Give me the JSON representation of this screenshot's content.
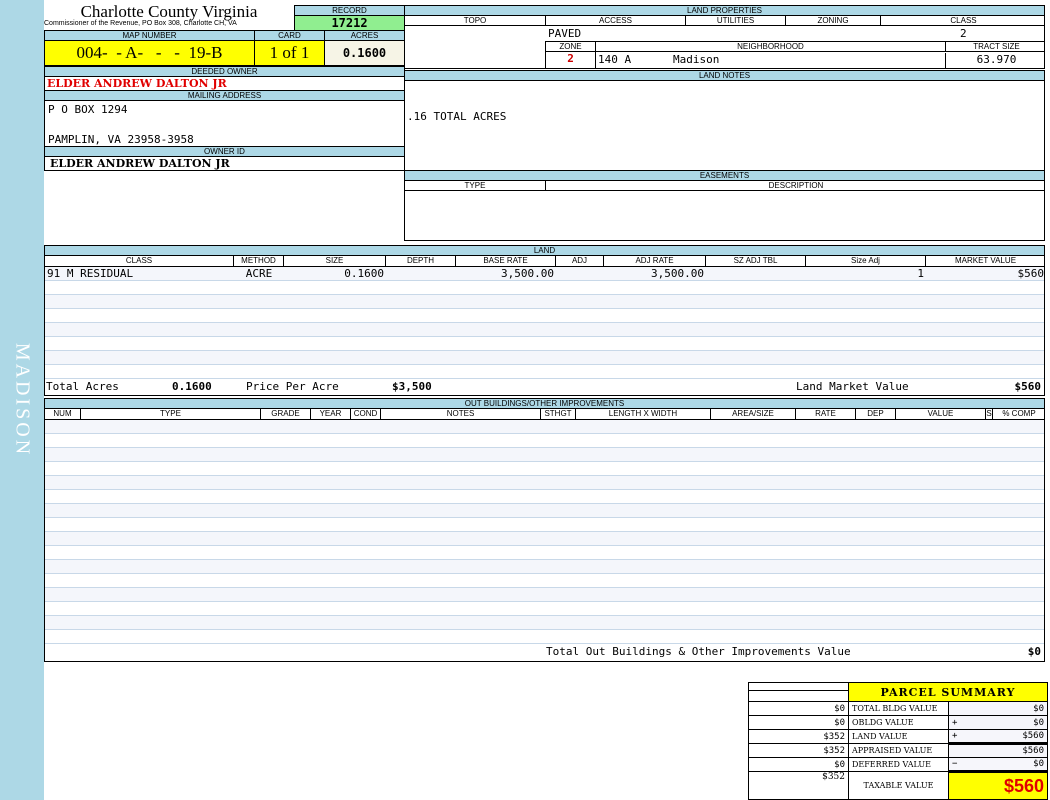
{
  "sidebar_label": "MADISON",
  "header": {
    "title": "Charlotte County Virginia",
    "subtitle": "Commissioner of the Revenue, PO Box 308, Charlotte CH, VA"
  },
  "record": {
    "label": "RECORD",
    "value": "17212"
  },
  "map": {
    "label": "MAP NUMBER",
    "value": "004-  - A-   -   -  19-B",
    "card_label": "CARD",
    "card": "1 of 1",
    "acres_label": "ACRES",
    "acres": "0.1600"
  },
  "owner": {
    "deeded_label": "DEEDED OWNER",
    "deeded": "ELDER ANDREW DALTON JR",
    "mailing_label": "MAILING ADDRESS",
    "address1": "P O BOX 1294",
    "address2": "PAMPLIN, VA 23958-3958",
    "owner_id_label": "OWNER ID",
    "owner_id": "ELDER ANDREW DALTON JR"
  },
  "land_properties": {
    "label": "LAND PROPERTIES",
    "cols": [
      "TOPO",
      "ACCESS",
      "UTILITIES",
      "ZONING",
      "CLASS"
    ],
    "access": "PAVED",
    "class": "2",
    "zone_label": "ZONE",
    "neighborhood_label": "NEIGHBORHOOD",
    "tract_label": "TRACT SIZE",
    "zone": "2",
    "neighborhood_code": "140 A",
    "neighborhood": "Madison",
    "tract": "63.970"
  },
  "land_notes": {
    "label": "LAND NOTES",
    "text": ".16 TOTAL ACRES"
  },
  "easements": {
    "label": "EASEMENTS",
    "cols": [
      "TYPE",
      "DESCRIPTION"
    ]
  },
  "land": {
    "label": "LAND",
    "cols": [
      "CLASS",
      "METHOD",
      "SIZE",
      "DEPTH",
      "BASE RATE",
      "ADJ",
      "ADJ RATE",
      "SZ ADJ TBL",
      "Size Adj",
      "MARKET VALUE"
    ],
    "rows": [
      {
        "class": "91 M RESIDUAL",
        "method": "ACRE",
        "size": "0.1600",
        "depth": "",
        "base": "3,500.00",
        "adj": "",
        "adj_rate": "3,500.00",
        "sz_tbl": "",
        "size_adj": "1",
        "market": "$560"
      }
    ],
    "total_acres_label": "Total Acres",
    "total_acres": "0.1600",
    "ppa_label": "Price Per Acre",
    "ppa": "$3,500",
    "lmv_label": "Land Market Value",
    "lmv": "$560"
  },
  "outbuildings": {
    "label": "OUT BUILDINGS/OTHER IMPROVEMENTS",
    "cols": [
      "NUM",
      "TYPE",
      "GRADE",
      "YEAR",
      "COND",
      "NOTES",
      "STHGT",
      "LENGTH X WIDTH",
      "AREA/SIZE",
      "RATE",
      "DEP",
      "VALUE",
      "S",
      "% COMP"
    ],
    "total_label": "Total Out Buildings & Other Improvements Value",
    "total": "$0"
  },
  "summary": {
    "title": "PARCEL SUMMARY",
    "rows": [
      {
        "left": "$0",
        "label": "TOTAL BLDG VALUE",
        "op": "",
        "value": "$0"
      },
      {
        "left": "$0",
        "label": "OBLDG VALUE",
        "op": "+",
        "value": "$0"
      },
      {
        "left": "$352",
        "label": "LAND VALUE",
        "op": "+",
        "value": "$560"
      },
      {
        "left": "$352",
        "label": "APPRAISED VALUE",
        "op": "",
        "value": "$560"
      },
      {
        "left": "$0",
        "label": "DEFERRED VALUE",
        "op": "−",
        "value": "$0"
      }
    ],
    "taxable_left": "$352",
    "taxable_label": "TAXABLE VALUE",
    "taxable": "$560"
  },
  "colors": {
    "sidebar": "#add8e6",
    "header": "#add8e6",
    "record": "#90ee90",
    "map": "#ffff00",
    "owner_red": "#e00000"
  }
}
